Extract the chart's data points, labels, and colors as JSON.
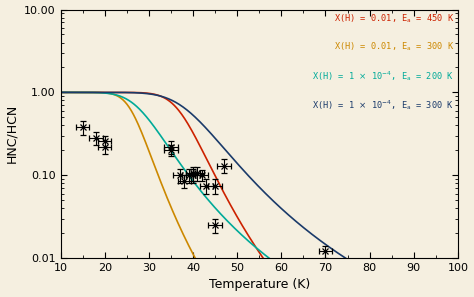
{
  "xlabel": "Temperature (K)",
  "ylabel": "HNC/HCN",
  "xmin": 10,
  "xmax": 100,
  "ymin": 0.01,
  "ymax": 10.0,
  "line_colors": [
    "#cc2200",
    "#cc8800",
    "#00aa99",
    "#1a3a6a"
  ],
  "background_color": "#f5efe0",
  "data_points": {
    "x": [
      15,
      18,
      20,
      20,
      35,
      35,
      37,
      38,
      39,
      40,
      40,
      41,
      42,
      43,
      45,
      45,
      47,
      70
    ],
    "y": [
      0.38,
      0.28,
      0.26,
      0.22,
      0.22,
      0.2,
      0.1,
      0.085,
      0.1,
      0.105,
      0.1,
      0.105,
      0.1,
      0.075,
      0.075,
      0.025,
      0.13,
      0.012
    ],
    "yerr_low": [
      0.07,
      0.05,
      0.04,
      0.04,
      0.04,
      0.03,
      0.02,
      0.015,
      0.02,
      0.02,
      0.02,
      0.02,
      0.015,
      0.015,
      0.015,
      0.005,
      0.025,
      0.002
    ],
    "yerr_high": [
      0.07,
      0.05,
      0.04,
      0.04,
      0.04,
      0.03,
      0.02,
      0.015,
      0.02,
      0.02,
      0.02,
      0.02,
      0.015,
      0.015,
      0.015,
      0.005,
      0.025,
      0.002
    ]
  },
  "model_params": [
    {
      "XH": 0.01,
      "Ea": 450,
      "color": "#cc2200",
      "label": "X(H) = 0.01, E_{a} = 450 K"
    },
    {
      "XH": 0.01,
      "Ea": 300,
      "color": "#cc8800",
      "label": "X(H) = 0.01, E_{a} = 300 K"
    },
    {
      "XH": 0.0001,
      "Ea": 200,
      "color": "#00aa99",
      "label": "X(H) = 1 x 10^{-4}, E_{a} = 200 K"
    },
    {
      "XH": 0.0001,
      "Ea": 300,
      "color": "#1a3a6a",
      "label": "X(H) = 1 x 10^{-4}, E_{a} = 300 K"
    }
  ]
}
